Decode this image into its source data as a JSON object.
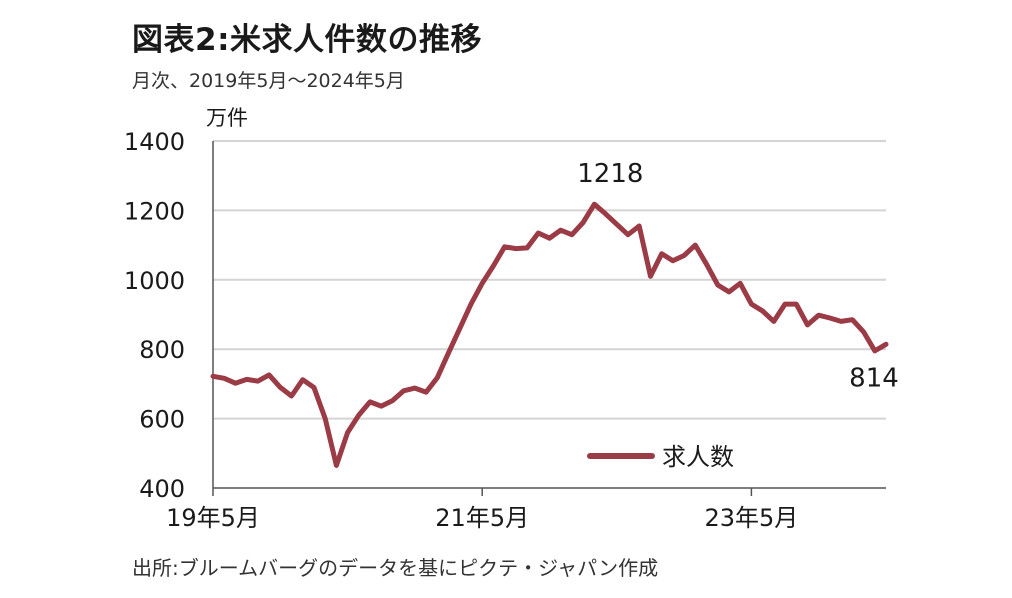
{
  "colors": {
    "series": "#9b3b45",
    "grid": "#d4d4d4",
    "axis": "#555555"
  },
  "chart_data": {
    "type": "line",
    "title": "図表2:米求人件数の推移",
    "subtitle": "月次、2019年5月～2024年5月",
    "ylabel": "万件",
    "source": "出所:ブルームバーグのデータを基にピクテ・ジャパン作成",
    "ylim": [
      400,
      1400
    ],
    "yticks": [
      "400",
      "600",
      "800",
      "1000",
      "1200",
      "1400"
    ],
    "xticks": [
      {
        "label": "19年5月",
        "date": "2019-05"
      },
      {
        "label": "21年5月",
        "date": "2021-05"
      },
      {
        "label": "23年5月",
        "date": "23年5月"
      }
    ],
    "grid": true,
    "legend": {
      "position": "bottom-right"
    },
    "series": [
      {
        "name": "求人数",
        "x": [
          "2019-05",
          "2019-06",
          "2019-07",
          "2019-08",
          "2019-09",
          "2019-10",
          "2019-11",
          "2019-12",
          "2020-01",
          "2020-02",
          "2020-03",
          "2020-04",
          "2020-05",
          "2020-06",
          "2020-07",
          "2020-08",
          "2020-09",
          "2020-10",
          "2020-11",
          "2020-12",
          "2021-01",
          "2021-02",
          "2021-03",
          "2021-04",
          "2021-05",
          "2021-06",
          "2021-07",
          "2021-08",
          "2021-09",
          "2021-10",
          "2021-11",
          "2021-12",
          "2022-01",
          "2022-02",
          "2022-03",
          "2022-04",
          "2022-05",
          "2022-06",
          "2022-07",
          "2022-08",
          "2022-09",
          "2022-10",
          "2022-11",
          "2022-12",
          "2023-01",
          "2023-02",
          "2023-03",
          "2023-04",
          "2023-05",
          "2023-06",
          "2023-07",
          "2023-08",
          "2023-09",
          "2023-10",
          "2023-11",
          "2023-12",
          "2024-01",
          "2024-02",
          "2024-03",
          "2024-04",
          "2024-05"
        ],
        "values": [
          722,
          716,
          702,
          713,
          708,
          726,
          690,
          665,
          712,
          690,
          600,
          465,
          560,
          610,
          648,
          636,
          652,
          680,
          688,
          676,
          718,
          790,
          860,
          930,
          990,
          1040,
          1095,
          1090,
          1092,
          1135,
          1120,
          1143,
          1130,
          1165,
          1218,
          1190,
          1160,
          1130,
          1155,
          1010,
          1075,
          1055,
          1070,
          1100,
          1045,
          985,
          965,
          990,
          930,
          910,
          880,
          930,
          930,
          870,
          898,
          890,
          880,
          885,
          850,
          795,
          814
        ]
      }
    ],
    "annotations": [
      {
        "text": "1218",
        "x": "2022-03",
        "value": 1218,
        "position": "above"
      },
      {
        "text": "814",
        "x": "2024-05",
        "value": 814,
        "position": "below"
      }
    ]
  }
}
